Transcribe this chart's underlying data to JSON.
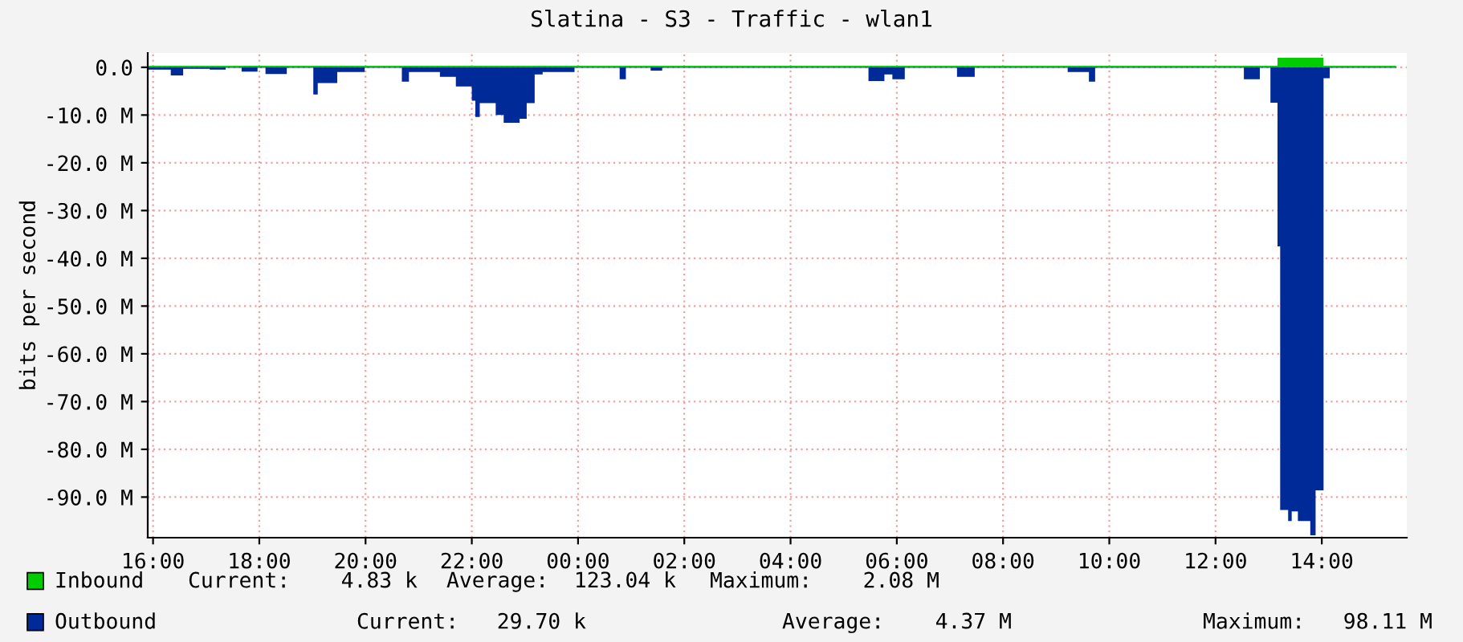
{
  "chart_data": {
    "type": "area",
    "title": "Slatina - S3 - Traffic - wlan1",
    "ylabel": "bits per second",
    "series": [
      {
        "name": "Inbound",
        "color": "#00cc00",
        "x": [
          "2000-01-01T15:54",
          "2000-01-02T13:06",
          "2000-01-02T13:10",
          "2000-01-02T14:02",
          "2000-01-02T15:24"
        ],
        "values": [
          0.3,
          0.3,
          2.0,
          0.3,
          0.3
        ]
      },
      {
        "name": "Outbound",
        "color": "#002a97",
        "x": [
          "2000-01-01T15:54",
          "2000-01-01T16:20",
          "2000-01-01T16:34",
          "2000-01-01T17:04",
          "2000-01-01T17:22",
          "2000-01-01T17:40",
          "2000-01-01T17:58",
          "2000-01-01T18:07",
          "2000-01-01T18:31",
          "2000-01-01T19:01",
          "2000-01-01T19:06",
          "2000-01-01T19:28",
          "2000-01-01T19:59",
          "2000-01-01T20:41",
          "2000-01-01T20:49",
          "2000-01-01T21:24",
          "2000-01-01T21:42",
          "2000-01-01T22:00",
          "2000-01-01T22:04",
          "2000-01-01T22:09",
          "2000-01-01T22:27",
          "2000-01-01T22:36",
          "2000-01-01T22:54",
          "2000-01-01T23:02",
          "2000-01-01T23:11",
          "2000-01-01T23:20",
          "2000-01-01T23:56",
          "2000-01-02T00:47",
          "2000-01-02T00:54",
          "2000-01-02T01:22",
          "2000-01-02T01:35",
          "2000-01-02T05:28",
          "2000-01-02T05:46",
          "2000-01-02T05:55",
          "2000-01-02T06:09",
          "2000-01-02T07:08",
          "2000-01-02T07:28",
          "2000-01-02T09:13",
          "2000-01-02T09:37",
          "2000-01-02T09:44",
          "2000-01-02T12:32",
          "2000-01-02T12:50",
          "2000-01-02T13:02",
          "2000-01-02T13:10",
          "2000-01-02T13:13",
          "2000-01-02T13:22",
          "2000-01-02T13:26",
          "2000-01-02T13:33",
          "2000-01-02T13:47",
          "2000-01-02T13:53",
          "2000-01-02T14:02",
          "2000-01-02T14:09",
          "2000-01-02T15:24"
        ],
        "values": [
          -0.5,
          -1.7,
          -0.3,
          -0.5,
          -0.1,
          -0.9,
          -0.1,
          -1.4,
          -0.1,
          -5.7,
          -3.3,
          -1.0,
          -0.1,
          -3.0,
          -1.0,
          -2.0,
          -4.0,
          -7.0,
          -10.4,
          -7.5,
          -10.0,
          -11.6,
          -10.8,
          -7.5,
          -1.5,
          -1.0,
          -0.1,
          -2.5,
          -0.1,
          -0.7,
          -0.1,
          -2.9,
          -1.5,
          -2.5,
          -0.1,
          -2.0,
          -0.1,
          -1.0,
          -3.0,
          -0.1,
          -2.5,
          -0.1,
          -7.4,
          -37.5,
          -92.7,
          -95.0,
          -93.0,
          -95.0,
          -98.0,
          -88.6,
          -2.3,
          -0.1,
          -0.1
        ]
      }
    ],
    "xlim": [
      "2000-01-01T15:54",
      "2000-01-02T15:36"
    ],
    "xticks": [
      {
        "value": "2000-01-01T16:00",
        "label": "16:00"
      },
      {
        "value": "2000-01-01T18:00",
        "label": "18:00"
      },
      {
        "value": "2000-01-01T20:00",
        "label": "20:00"
      },
      {
        "value": "2000-01-01T22:00",
        "label": "22:00"
      },
      {
        "value": "2000-01-02T00:00",
        "label": "00:00"
      },
      {
        "value": "2000-01-02T02:00",
        "label": "02:00"
      },
      {
        "value": "2000-01-02T04:00",
        "label": "04:00"
      },
      {
        "value": "2000-01-02T06:00",
        "label": "06:00"
      },
      {
        "value": "2000-01-02T08:00",
        "label": "08:00"
      },
      {
        "value": "2000-01-02T10:00",
        "label": "10:00"
      },
      {
        "value": "2000-01-02T12:00",
        "label": "12:00"
      },
      {
        "value": "2000-01-02T14:00",
        "label": "14:00"
      }
    ],
    "ylim": [
      -98.5,
      3
    ],
    "yticks": [
      {
        "value": 0,
        "label": "0.0"
      },
      {
        "value": -10,
        "label": "-10.0 M"
      },
      {
        "value": -20,
        "label": "-20.0 M"
      },
      {
        "value": -30,
        "label": "-30.0 M"
      },
      {
        "value": -40,
        "label": "-40.0 M"
      },
      {
        "value": -50,
        "label": "-50.0 M"
      },
      {
        "value": -60,
        "label": "-60.0 M"
      },
      {
        "value": -70,
        "label": "-70.0 M"
      },
      {
        "value": -80,
        "label": "-80.0 M"
      },
      {
        "value": -90,
        "label": "-90.0 M"
      }
    ],
    "grid": true,
    "legend": "bottom",
    "annotations": [
      "Current:    4.83 k",
      "Average:  123.04 k",
      "Maximum:    2.08 M",
      "Current:   29.70 k",
      "Average:    4.37 M",
      "Maximum:   98.11 M"
    ]
  }
}
